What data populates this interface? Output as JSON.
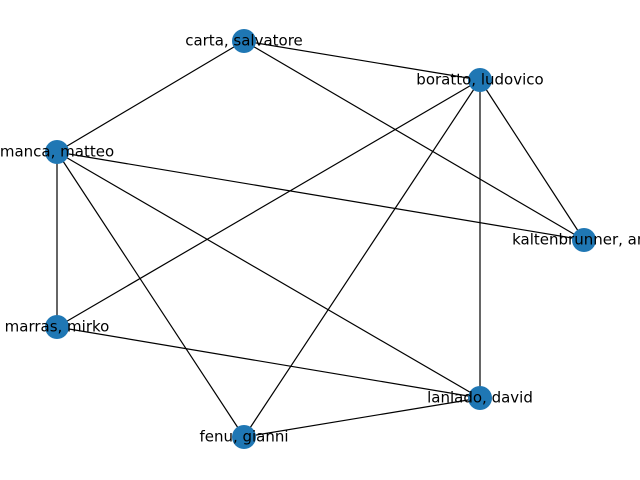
{
  "graph": {
    "node_color": "#1f77b4",
    "edge_color": "#000000",
    "nodes": [
      {
        "id": "carta",
        "label": "carta, salvatore"
      },
      {
        "id": "boratto",
        "label": "boratto, ludovico"
      },
      {
        "id": "manca",
        "label": "manca, matteo"
      },
      {
        "id": "kaltenbrunner",
        "label": "kaltenbrunner, and"
      },
      {
        "id": "marras",
        "label": "marras, mirko"
      },
      {
        "id": "laniado",
        "label": "laniado, david"
      },
      {
        "id": "fenu",
        "label": "fenu, gianni"
      }
    ],
    "edges": [
      [
        "carta",
        "boratto"
      ],
      [
        "carta",
        "manca"
      ],
      [
        "carta",
        "kaltenbrunner"
      ],
      [
        "boratto",
        "kaltenbrunner"
      ],
      [
        "boratto",
        "marras"
      ],
      [
        "boratto",
        "laniado"
      ],
      [
        "boratto",
        "fenu"
      ],
      [
        "manca",
        "kaltenbrunner"
      ],
      [
        "manca",
        "marras"
      ],
      [
        "manca",
        "laniado"
      ],
      [
        "manca",
        "fenu"
      ],
      [
        "marras",
        "laniado"
      ],
      [
        "laniado",
        "fenu"
      ]
    ]
  }
}
